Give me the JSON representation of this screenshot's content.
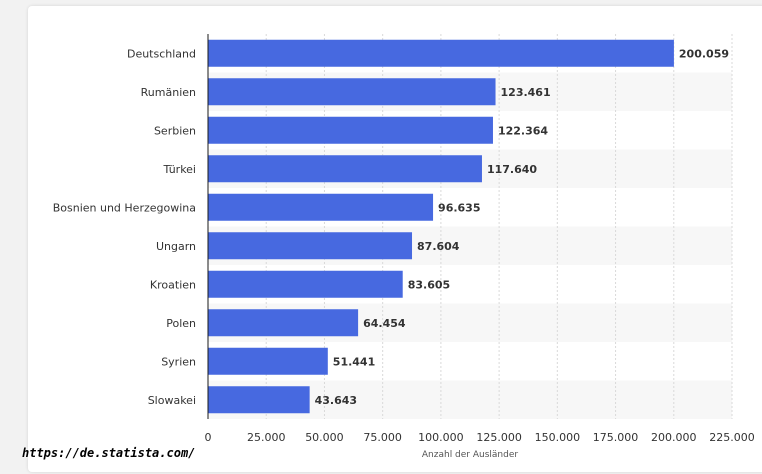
{
  "source_url": "https://de.statista.com/",
  "colors": {
    "bar": "#4769e0",
    "stripe": "#f7f7f7",
    "grid": "#d9d9d9",
    "axis": "#1a1a1a"
  },
  "chart_data": {
    "type": "bar",
    "orientation": "horizontal",
    "categories": [
      "Deutschland",
      "Rumänien",
      "Serbien",
      "Türkei",
      "Bosnien und Herzegowina",
      "Ungarn",
      "Kroatien",
      "Polen",
      "Syrien",
      "Slowakei"
    ],
    "values": [
      200059,
      123461,
      122364,
      117640,
      96635,
      87604,
      83605,
      64454,
      51441,
      43643
    ],
    "value_labels": [
      "200.059",
      "123.461",
      "122.364",
      "117.640",
      "96.635",
      "87.604",
      "83.605",
      "64.454",
      "51.441",
      "43.643"
    ],
    "xlabel": "Anzahl der Ausländer",
    "ylabel": "",
    "xlim": [
      0,
      225000
    ],
    "xticks": [
      0,
      25000,
      50000,
      75000,
      100000,
      125000,
      150000,
      175000,
      200000,
      225000
    ],
    "xtick_labels": [
      "0",
      "25.000",
      "50.000",
      "75.000",
      "100.000",
      "125.000",
      "150.000",
      "175.000",
      "200.000",
      "225.000"
    ],
    "grid": true,
    "legend": "none"
  }
}
